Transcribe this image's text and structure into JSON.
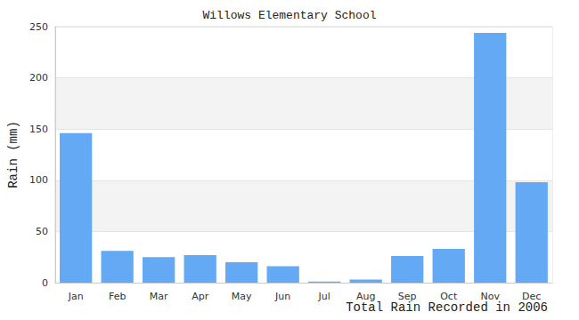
{
  "chart_data": {
    "type": "bar",
    "title": "Willows Elementary School",
    "x_label": "Total Rain Recorded in 2006",
    "y_label": "Rain (mm)",
    "categories": [
      "Jan",
      "Feb",
      "Mar",
      "Apr",
      "May",
      "Jun",
      "Jul",
      "Aug",
      "Sep",
      "Oct",
      "Nov",
      "Dec"
    ],
    "values": [
      146,
      31,
      25,
      27,
      20,
      16,
      1,
      3,
      26,
      33,
      244,
      98
    ],
    "color": "#63a9f4",
    "ylim": [
      0,
      250
    ],
    "yticks": [
      0,
      50,
      100,
      150,
      200,
      250
    ],
    "grid": true
  }
}
